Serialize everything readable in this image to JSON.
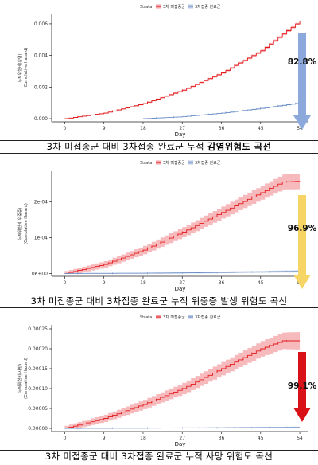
{
  "legend": {
    "title": "Strata",
    "items": [
      "3차 미접종군",
      "3차접종 완료군"
    ]
  },
  "colors": {
    "unvaccinated": "#e31a1c",
    "vaccinated": "#6a8fc7",
    "band_unvax": "#f4a3a6",
    "band_vax": "#b9c8e3"
  },
  "chart_data": [
    {
      "type": "line",
      "title": "3차 미접종군 대비 3차접종 완료군 누적 감염위험도 곡선",
      "title_prefix": "3차 미접종군 대비 3차접종 완료군 누적 ",
      "title_emph": "감염위험도 곡선",
      "xlabel": "Day",
      "ylabel_ko": "누적위험비(감염)",
      "ylabel_en": "(Cumulative Hazard)",
      "xlim": [
        -3,
        56
      ],
      "ylim": [
        -0.0002,
        0.0066
      ],
      "xticks": [
        0,
        9,
        18,
        27,
        36,
        45,
        54
      ],
      "yticks": [
        0.0,
        0.002,
        0.004,
        0.006
      ],
      "ytick_labels": [
        "0.000",
        "0.002",
        "0.004",
        "0.006"
      ],
      "series": [
        {
          "name": "3차 미접종군",
          "x": [
            0,
            9,
            18,
            27,
            36,
            45,
            54
          ],
          "y": [
            0.0,
            0.00035,
            0.00095,
            0.0018,
            0.0029,
            0.0043,
            0.0062
          ],
          "band": 8e-05
        },
        {
          "name": "3차접종 완료군",
          "x": [
            18,
            27,
            36,
            45,
            54
          ],
          "y": [
            0.0,
            0.00012,
            0.00035,
            0.00065,
            0.001
          ],
          "band": 4e-05
        }
      ],
      "arrow": {
        "label": "82.8%",
        "color": "#8da9dc"
      }
    },
    {
      "type": "line",
      "title": "3차 미접종군 대비 3차접종 완료군 누적 위중증 발생 위험도 곡선",
      "title_prefix": "3차 미접종군 대비 3차접종 완료군 누적 위중증 발생 위험도 곡선",
      "title_emph": "",
      "xlabel": "Day",
      "ylabel_ko": "누적위험비(위중증)",
      "ylabel_en": "(Cumulative Hazard)",
      "xlim": [
        -3,
        56
      ],
      "ylim": [
        -8e-06,
        0.000285
      ],
      "xticks": [
        0,
        9,
        18,
        27,
        36,
        45,
        54
      ],
      "yticks": [
        0.0,
        0.0001,
        0.0002
      ],
      "ytick_labels": [
        "0e+00",
        "1e-04",
        "2e-04"
      ],
      "series": [
        {
          "name": "3차 미접종군",
          "x": [
            0,
            9,
            18,
            27,
            36,
            45,
            50,
            54
          ],
          "y": [
            0.0,
            2.5e-05,
            6.5e-05,
            0.000115,
            0.00017,
            0.000225,
            0.000255,
            0.000257
          ],
          "band": 2.2e-05
        },
        {
          "name": "3차접종 완료군",
          "x": [
            0,
            18,
            27,
            36,
            45,
            54
          ],
          "y": [
            0.0,
            5e-07,
            1.5e-06,
            3e-06,
            4.5e-06,
            6e-06
          ],
          "band": 3e-06
        }
      ],
      "arrow": {
        "label": "96.9%",
        "color": "#f7d564"
      }
    },
    {
      "type": "line",
      "title": "3차 미접종군 대비 3차접종 완료군 누적 사망 위험도 곡선",
      "title_prefix": "3차 미접종군 대비 3차접종 완료군 누적 사망 위험도 곡선",
      "title_emph": "",
      "xlabel": "Day",
      "ylabel_ko": "누적위험비(사망)",
      "ylabel_en": "(Cumulative Hazard)",
      "xlim": [
        -3,
        56
      ],
      "ylim": [
        -8e-06,
        0.00026
      ],
      "xticks": [
        0,
        9,
        18,
        27,
        36,
        45,
        54
      ],
      "yticks": [
        0.0,
        5e-05,
        0.0001,
        0.00015,
        0.0002,
        0.00025
      ],
      "ytick_labels": [
        "0.00000",
        "0.00005",
        "0.00010",
        "0.00015",
        "0.00020",
        "0.00025"
      ],
      "series": [
        {
          "name": "3차 미접종군",
          "x": [
            0,
            9,
            18,
            27,
            36,
            45,
            50,
            54
          ],
          "y": [
            0.0,
            2.5e-05,
            6e-05,
            0.0001,
            0.00015,
            0.0002,
            0.00022,
            0.00022
          ],
          "band": 2.2e-05
        },
        {
          "name": "3차접종 완료군",
          "x": [
            0,
            18,
            27,
            36,
            45,
            54
          ],
          "y": [
            0.0,
            5e-07,
            1e-06,
            1.5e-06,
            2e-06,
            2.5e-06
          ],
          "band": 2e-06
        }
      ],
      "arrow": {
        "label": "99.1%",
        "color": "#d9121a"
      }
    }
  ]
}
